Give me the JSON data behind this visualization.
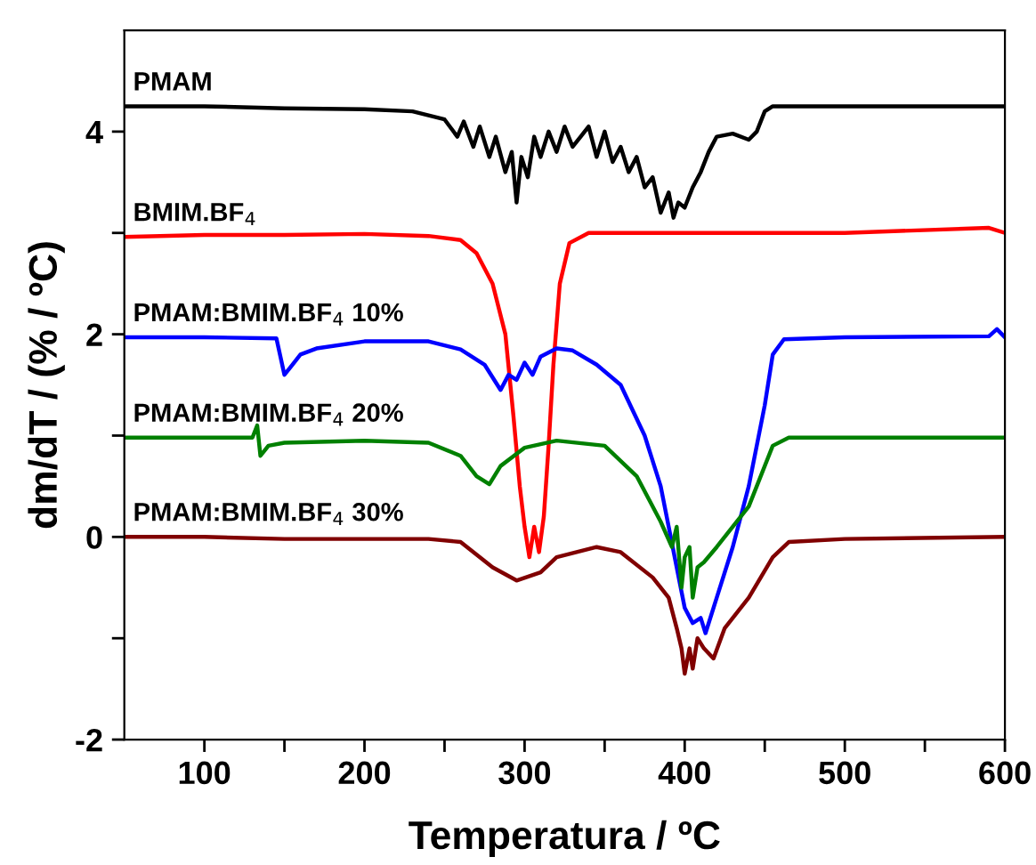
{
  "chart_data": {
    "type": "line",
    "xlabel": "Temperatura / ºC",
    "ylabel": "dm/dT / (% / ºC)",
    "xlim": [
      50,
      600
    ],
    "ylim": [
      -2,
      5
    ],
    "xticks": [
      100,
      {
        "value": 150,
        "label": null
      },
      200,
      {
        "value": 250,
        "label": null
      },
      300,
      {
        "value": 350,
        "label": null
      },
      400,
      {
        "value": 450,
        "label": null
      },
      500,
      {
        "value": 550,
        "label": null
      },
      600
    ],
    "yticks": [
      -2,
      {
        "value": -1,
        "label": null
      },
      0,
      {
        "value": 1,
        "label": null
      },
      2,
      {
        "value": 3,
        "label": null
      },
      4
    ],
    "grid": false,
    "legend": false,
    "marker": "none",
    "line_style": "solid",
    "series": [
      {
        "name": "PMAM",
        "color": "#000000",
        "x": [
          50,
          100,
          150,
          200,
          230,
          250,
          258,
          262,
          268,
          272,
          278,
          282,
          288,
          292,
          295,
          298,
          302,
          306,
          310,
          315,
          320,
          325,
          330,
          335,
          340,
          345,
          350,
          355,
          360,
          365,
          370,
          375,
          380,
          385,
          390,
          393,
          396,
          400,
          405,
          410,
          415,
          420,
          430,
          440,
          445,
          450,
          455,
          470,
          500,
          550,
          600
        ],
        "values": [
          4.25,
          4.25,
          4.23,
          4.22,
          4.2,
          4.12,
          3.95,
          4.1,
          3.85,
          4.05,
          3.75,
          3.95,
          3.6,
          3.8,
          3.3,
          3.75,
          3.55,
          3.95,
          3.75,
          4.0,
          3.8,
          4.05,
          3.85,
          3.95,
          4.05,
          3.75,
          4.0,
          3.7,
          3.85,
          3.6,
          3.75,
          3.45,
          3.55,
          3.2,
          3.4,
          3.15,
          3.3,
          3.25,
          3.45,
          3.6,
          3.8,
          3.95,
          3.98,
          3.92,
          4.0,
          4.2,
          4.25,
          4.25,
          4.25,
          4.25,
          4.25
        ]
      },
      {
        "name": "BMIM.BF$_{4}$",
        "color": "#ff0000",
        "x": [
          50,
          100,
          150,
          200,
          240,
          260,
          270,
          280,
          288,
          293,
          297,
          300,
          303,
          306,
          309,
          312,
          315,
          318,
          322,
          328,
          340,
          400,
          500,
          590,
          600
        ],
        "values": [
          2.96,
          2.98,
          2.98,
          2.99,
          2.97,
          2.93,
          2.8,
          2.5,
          2.0,
          1.2,
          0.5,
          0.1,
          -0.2,
          0.1,
          -0.15,
          0.2,
          0.9,
          1.7,
          2.5,
          2.9,
          3.0,
          3.0,
          3.0,
          3.05,
          3.0
        ]
      },
      {
        "name": "PMAM:BMIM.BF$_{4}$ 10%",
        "color": "#0000ff",
        "x": [
          50,
          100,
          145,
          150,
          155,
          160,
          170,
          200,
          240,
          260,
          275,
          285,
          290,
          295,
          300,
          305,
          310,
          320,
          330,
          345,
          360,
          375,
          385,
          395,
          400,
          405,
          410,
          413,
          420,
          430,
          440,
          450,
          455,
          462,
          500,
          590,
          595,
          600
        ],
        "values": [
          1.97,
          1.97,
          1.96,
          1.6,
          1.7,
          1.8,
          1.86,
          1.93,
          1.93,
          1.85,
          1.7,
          1.45,
          1.6,
          1.55,
          1.72,
          1.6,
          1.78,
          1.86,
          1.84,
          1.7,
          1.5,
          1.0,
          0.5,
          -0.3,
          -0.7,
          -0.85,
          -0.8,
          -0.95,
          -0.6,
          -0.1,
          0.5,
          1.3,
          1.8,
          1.95,
          1.97,
          1.98,
          2.05,
          1.97
        ]
      },
      {
        "name": "PMAM:BMIM.BF$_{4}$ 20%",
        "color": "#008000",
        "x": [
          50,
          100,
          130,
          133,
          135,
          140,
          150,
          200,
          240,
          260,
          270,
          278,
          285,
          300,
          320,
          350,
          370,
          385,
          392,
          395,
          398,
          400,
          403,
          405,
          408,
          412,
          420,
          440,
          455,
          465,
          500,
          600
        ],
        "values": [
          0.98,
          0.98,
          0.98,
          1.1,
          0.8,
          0.9,
          0.93,
          0.95,
          0.93,
          0.8,
          0.6,
          0.52,
          0.7,
          0.88,
          0.95,
          0.9,
          0.6,
          0.15,
          -0.1,
          0.1,
          -0.5,
          -0.2,
          -0.1,
          -0.6,
          -0.3,
          -0.25,
          -0.1,
          0.3,
          0.9,
          0.98,
          0.98,
          0.98
        ]
      },
      {
        "name": "PMAM:BMIM.BF$_{4}$ 30%",
        "color": "#800000",
        "x": [
          50,
          100,
          150,
          200,
          240,
          260,
          280,
          295,
          310,
          320,
          345,
          360,
          380,
          390,
          395,
          398,
          400,
          403,
          405,
          408,
          412,
          418,
          425,
          440,
          455,
          465,
          500,
          600
        ],
        "values": [
          0.0,
          0.0,
          -0.02,
          -0.02,
          -0.02,
          -0.05,
          -0.3,
          -0.43,
          -0.35,
          -0.2,
          -0.1,
          -0.15,
          -0.4,
          -0.6,
          -0.9,
          -1.1,
          -1.35,
          -1.1,
          -1.3,
          -1.0,
          -1.1,
          -1.2,
          -0.9,
          -0.6,
          -0.2,
          -0.05,
          -0.02,
          0.0
        ]
      }
    ]
  }
}
